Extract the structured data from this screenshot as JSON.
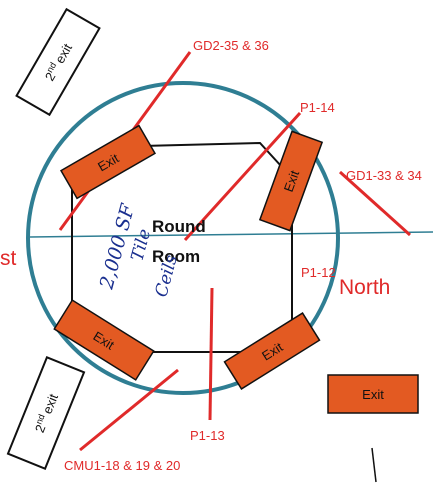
{
  "room": {
    "title_line1": "Round",
    "title_line2": "Room",
    "handwritten_line1": "2,000 SF",
    "handwritten_line2": "Tile",
    "handwritten_line3": "Ceils"
  },
  "directions": {
    "west_partial": "st",
    "north": "North"
  },
  "exits": {
    "exit_label": "Exit",
    "second_exit_label": "2nd exit",
    "second_exit_base": "2",
    "second_exit_sup": "nd",
    "second_exit_word": "exit"
  },
  "callouts": {
    "gd2": "GD2-35 & 36",
    "p1_14": "P1-14",
    "gd1": "GD1-33 & 34",
    "p1_12": "P1-12",
    "p1_13": "P1-13",
    "cmu1": "CMU1-18 & 19 & 20"
  },
  "colors": {
    "circle": "#2f7e93",
    "exit_fill": "#e35a22",
    "annotation": "#e02a2a",
    "ink": "#1a2f8f"
  }
}
